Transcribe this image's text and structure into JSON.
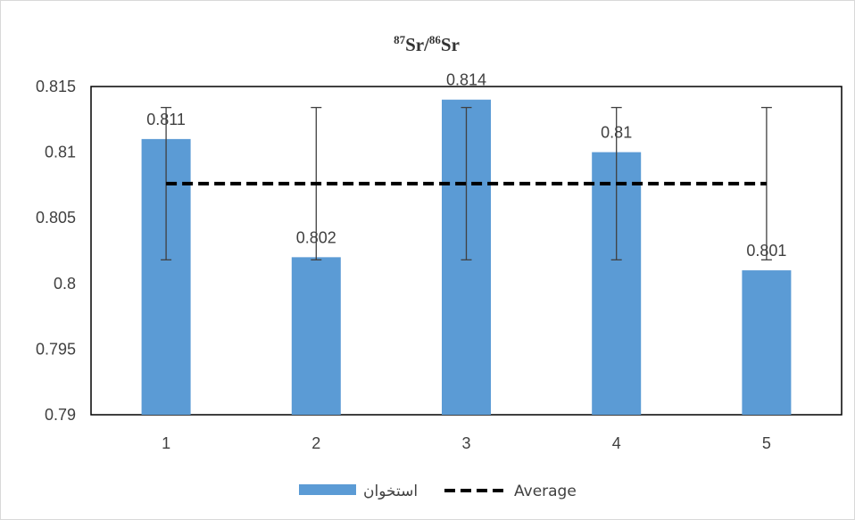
{
  "chart_data": {
    "type": "bar",
    "title": {
      "sup1": "87",
      "part1": "Sr/",
      "sup2": "86",
      "part2": "Sr"
    },
    "categories": [
      "1",
      "2",
      "3",
      "4",
      "5"
    ],
    "series": [
      {
        "name": "استخوان",
        "type": "bar",
        "values": [
          0.811,
          0.802,
          0.814,
          0.81,
          0.801
        ],
        "data_labels": [
          "0.811",
          "0.802",
          "0.814",
          "0.81",
          "0.801"
        ],
        "error_bars": {
          "low": 0.8018,
          "high": 0.8134
        },
        "color": "#5b9bd5"
      },
      {
        "name": "Average",
        "type": "line",
        "style": "dashed",
        "values": [
          0.8076,
          0.8076,
          0.8076,
          0.8076,
          0.8076
        ],
        "color": "#000000"
      }
    ],
    "ylim": [
      0.79,
      0.815
    ],
    "yticks": [
      "0.79",
      "0.795",
      "0.8",
      "0.805",
      "0.81",
      "0.815"
    ],
    "ytick_values": [
      0.79,
      0.795,
      0.8,
      0.805,
      0.81,
      0.815
    ],
    "grid": false,
    "legend_position": "bottom"
  }
}
